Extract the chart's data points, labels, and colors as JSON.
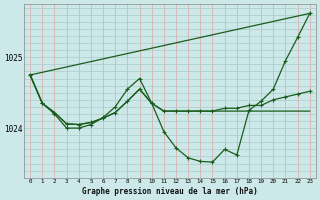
{
  "title": "Graphe pression niveau de la mer (hPa)",
  "bg_color": "#cce8e8",
  "line_color": "#1a5c1a",
  "grid_color_v": "#ddb0b0",
  "grid_color_h": "#aacccc",
  "xlim": [
    -0.5,
    23.5
  ],
  "ylim": [
    1023.3,
    1025.75
  ],
  "yticks": [
    1024,
    1025
  ],
  "xticks": [
    0,
    1,
    2,
    3,
    4,
    5,
    6,
    7,
    8,
    9,
    10,
    11,
    12,
    13,
    14,
    15,
    16,
    17,
    18,
    19,
    20,
    21,
    22,
    23
  ],
  "curve1_x": [
    0,
    1,
    2,
    3,
    4,
    5,
    6,
    7,
    8,
    9,
    10,
    11,
    12,
    13,
    14,
    15,
    16,
    17,
    18,
    19,
    20,
    21,
    22,
    23
  ],
  "curve1_y": [
    1024.75,
    1024.35,
    1024.2,
    1024.0,
    1024.0,
    1024.05,
    1024.15,
    1024.3,
    1024.55,
    1024.7,
    1024.35,
    1023.95,
    1023.72,
    1023.58,
    1023.53,
    1023.52,
    1023.7,
    1023.62,
    1024.25,
    1024.38,
    1024.55,
    1024.95,
    1025.28,
    1025.62
  ],
  "curve2_x": [
    0,
    1,
    2,
    3,
    4,
    5,
    6,
    7,
    8,
    9,
    10,
    11,
    12,
    13,
    14,
    15,
    16,
    17,
    18,
    19,
    20,
    21,
    22,
    23
  ],
  "curve2_y": [
    1024.75,
    1024.35,
    1024.22,
    1024.06,
    1024.05,
    1024.08,
    1024.14,
    1024.22,
    1024.38,
    1024.55,
    1024.35,
    1024.24,
    1024.24,
    1024.24,
    1024.24,
    1024.24,
    1024.28,
    1024.28,
    1024.32,
    1024.32,
    1024.4,
    1024.44,
    1024.48,
    1024.52
  ],
  "curve3_x": [
    0,
    23
  ],
  "curve3_y": [
    1024.75,
    1025.62
  ],
  "curve4_x": [
    0,
    1,
    2,
    3,
    4,
    5,
    6,
    7,
    8,
    9,
    10,
    11,
    12,
    13,
    14,
    15,
    16,
    17,
    18,
    19,
    20,
    21,
    22,
    23
  ],
  "curve4_y": [
    1024.75,
    1024.35,
    1024.22,
    1024.06,
    1024.05,
    1024.08,
    1024.14,
    1024.22,
    1024.38,
    1024.55,
    1024.35,
    1024.24,
    1024.24,
    1024.24,
    1024.24,
    1024.24,
    1024.24,
    1024.24,
    1024.24,
    1024.24,
    1024.24,
    1024.24,
    1024.24,
    1024.24
  ]
}
